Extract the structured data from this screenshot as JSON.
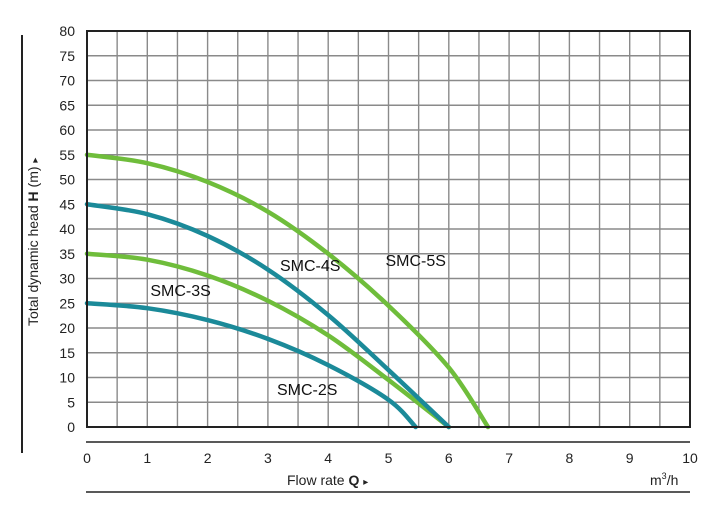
{
  "chart_data": {
    "type": "line",
    "xlabel_text": "Flow rate",
    "xlabel_symbol": "Q",
    "x_unit_base": "m",
    "x_unit_sup": "3",
    "x_unit_tail": "/h",
    "ylabel_text": "Total dynamic head",
    "ylabel_symbol": "H",
    "ylabel_unit": "(m)",
    "arrow": "▸",
    "xlim": [
      0,
      10
    ],
    "ylim": [
      0,
      80
    ],
    "x_ticks": [
      "0",
      "1",
      "2",
      "3",
      "4",
      "5",
      "6",
      "7",
      "8",
      "9",
      "10"
    ],
    "y_ticks": [
      "0",
      "5",
      "10",
      "15",
      "20",
      "25",
      "30",
      "35",
      "40",
      "45",
      "50",
      "55",
      "60",
      "65",
      "70",
      "75",
      "80"
    ],
    "grid": true,
    "series": [
      {
        "name": "SMC-2S",
        "color": "#1b8a99",
        "points": [
          [
            0,
            25
          ],
          [
            1,
            24
          ],
          [
            2,
            21.6
          ],
          [
            3,
            17.8
          ],
          [
            4,
            12.5
          ],
          [
            5,
            5.5
          ],
          [
            5.45,
            0
          ]
        ]
      },
      {
        "name": "SMC-3S",
        "color": "#6fbd3b",
        "points": [
          [
            0,
            35
          ],
          [
            1,
            33.8
          ],
          [
            2,
            30.6
          ],
          [
            3,
            25.5
          ],
          [
            4,
            18.5
          ],
          [
            5,
            9.5
          ],
          [
            6,
            0
          ]
        ]
      },
      {
        "name": "SMC-4S",
        "color": "#1b8a99",
        "points": [
          [
            0,
            45
          ],
          [
            1,
            43
          ],
          [
            2,
            38.6
          ],
          [
            3,
            31.8
          ],
          [
            4,
            22.6
          ],
          [
            5,
            11.5
          ],
          [
            6,
            0
          ]
        ]
      },
      {
        "name": "SMC-5S",
        "color": "#6fbd3b",
        "points": [
          [
            0,
            55
          ],
          [
            1,
            53.3
          ],
          [
            2,
            49.5
          ],
          [
            3,
            43.5
          ],
          [
            4,
            35
          ],
          [
            5,
            24.5
          ],
          [
            6,
            12
          ],
          [
            6.65,
            0
          ]
        ]
      }
    ],
    "labels": [
      {
        "text": "SMC-2S",
        "x": 3.15,
        "y": 6.5
      },
      {
        "text": "SMC-3S",
        "x": 1.05,
        "y": 26.5
      },
      {
        "text": "SMC-4S",
        "x": 3.2,
        "y": 31.5
      },
      {
        "text": "SMC-5S",
        "x": 4.95,
        "y": 32.5
      }
    ]
  }
}
